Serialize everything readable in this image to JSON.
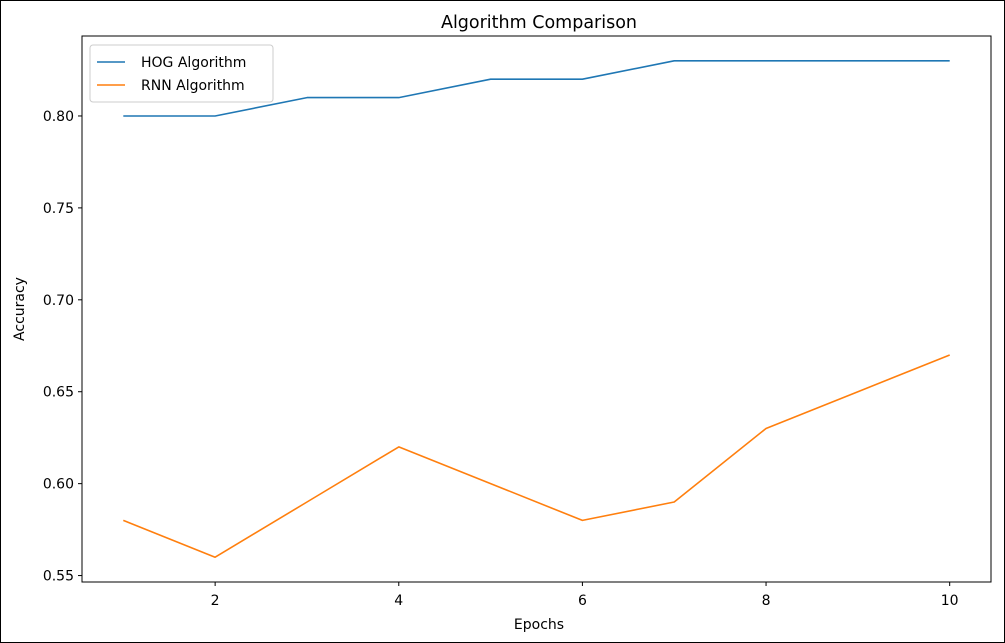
{
  "chart_data": {
    "type": "line",
    "title": "Algorithm Comparison",
    "xlabel": "Epochs",
    "ylabel": "Accuracy",
    "x": [
      1,
      2,
      3,
      4,
      5,
      6,
      7,
      8,
      9,
      10
    ],
    "series": [
      {
        "name": "HOG Algorithm",
        "color": "#1f77b4",
        "values": [
          0.8,
          0.8,
          0.81,
          0.81,
          0.82,
          0.82,
          0.83,
          0.83,
          0.83,
          0.83
        ]
      },
      {
        "name": "RNN Algorithm",
        "color": "#ff7f0e",
        "values": [
          0.58,
          0.56,
          0.59,
          0.62,
          0.6,
          0.58,
          0.59,
          0.63,
          0.65,
          0.67
        ]
      }
    ],
    "xticks": [
      2,
      4,
      6,
      8,
      10
    ],
    "yticks": [
      0.55,
      0.6,
      0.65,
      0.7,
      0.75,
      0.8
    ],
    "xlim": [
      0.55,
      10.45
    ],
    "ylim": [
      0.5465,
      0.8435
    ],
    "grid": false,
    "legend_position": "top-left"
  }
}
